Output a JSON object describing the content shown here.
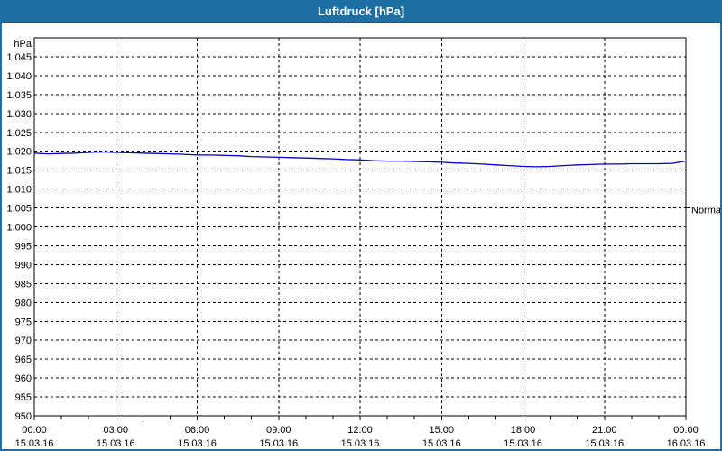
{
  "window": {
    "title": "Luftdruck [hPa]"
  },
  "colors": {
    "titlebar_bg": "#1e6fa4",
    "titlebar_border": "#16557e",
    "titlebar_text": "#ffffff",
    "window_border": "#1e6fa4",
    "plot_bg": "#ffffff",
    "grid": "#000000",
    "axis": "#000000",
    "text": "#000000",
    "series_line": "#0000c8"
  },
  "chart_data": {
    "type": "line",
    "title": "Luftdruck [hPa]",
    "xlabel": "",
    "ylabel": "hPa",
    "grid": "dashed",
    "legend_position": "none",
    "y_axis": {
      "unit_label": "hPa",
      "min": 950,
      "max": 1050,
      "grid_step": 5,
      "tick_labels": [
        "950",
        "955",
        "960",
        "965",
        "970",
        "975",
        "980",
        "985",
        "990",
        "995",
        "1.000",
        "1.005",
        "1.010",
        "1.015",
        "1.020",
        "1.025",
        "1.030",
        "1.035",
        "1.040",
        "1.045"
      ]
    },
    "x_axis": {
      "range_hours": [
        0,
        24
      ],
      "minor_tick_hours": 1,
      "major_tick_hours": 3,
      "time_labels": [
        "00:00",
        "03:00",
        "06:00",
        "09:00",
        "12:00",
        "15:00",
        "18:00",
        "21:00",
        "00:00"
      ],
      "date_labels": [
        "15.03.16",
        "15.03.16",
        "15.03.16",
        "15.03.16",
        "15.03.16",
        "15.03.16",
        "15.03.16",
        "15.03.16",
        "16.03.16"
      ]
    },
    "annotations": [
      {
        "label": "Normal",
        "value": 1005,
        "side": "right"
      }
    ],
    "series": [
      {
        "name": "Luftdruck",
        "color": "#0000c8",
        "x_hours": [
          0,
          0.5,
          1,
          1.5,
          2,
          2.5,
          3,
          3.5,
          4,
          4.5,
          5,
          5.5,
          6,
          6.5,
          7,
          7.5,
          8,
          8.5,
          9,
          9.5,
          10,
          10.5,
          11,
          11.5,
          12,
          12.5,
          13,
          13.5,
          14,
          14.5,
          15,
          15.5,
          16,
          16.5,
          17,
          17.5,
          18,
          18.5,
          19,
          19.5,
          20,
          20.5,
          21,
          21.5,
          22,
          22.5,
          23,
          23.5,
          24
        ],
        "values": [
          1019.5,
          1019.3,
          1019.4,
          1019.5,
          1019.7,
          1019.8,
          1019.7,
          1019.6,
          1019.5,
          1019.4,
          1019.3,
          1019.2,
          1019.0,
          1019.0,
          1018.9,
          1018.8,
          1018.6,
          1018.5,
          1018.4,
          1018.3,
          1018.2,
          1018.1,
          1018.0,
          1017.8,
          1017.7,
          1017.5,
          1017.4,
          1017.4,
          1017.3,
          1017.2,
          1017.1,
          1016.9,
          1016.8,
          1016.6,
          1016.4,
          1016.2,
          1016.0,
          1015.9,
          1016.0,
          1016.2,
          1016.4,
          1016.5,
          1016.6,
          1016.6,
          1016.7,
          1016.7,
          1016.7,
          1016.8,
          1017.4
        ]
      }
    ]
  }
}
